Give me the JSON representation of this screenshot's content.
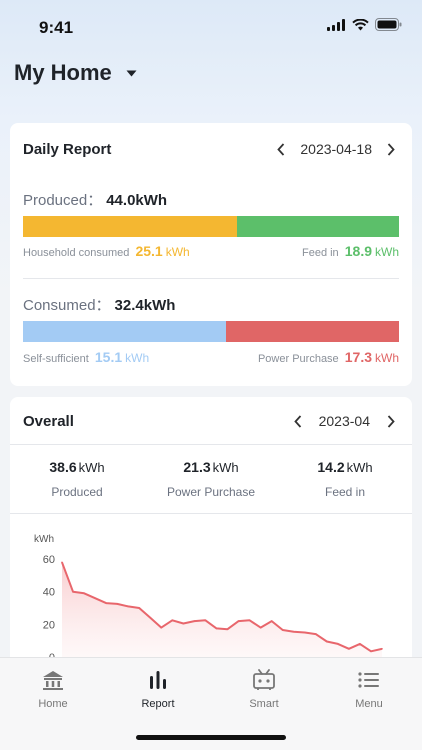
{
  "status_bar": {
    "time": "9:41"
  },
  "header": {
    "home_name": "My Home"
  },
  "daily_report": {
    "title": "Daily Report",
    "date": "2023-04-18",
    "produced": {
      "label": "Produced：",
      "value": "44.0kWh",
      "household_label": "Household consumed",
      "household_value": "25.1",
      "household_unit": "kWh",
      "household_share": 0.57,
      "feed_in_label": "Feed in",
      "feed_in_value": "18.9",
      "feed_in_unit": "kWh",
      "feed_in_share": 0.43
    },
    "consumed": {
      "label": "Consumed：",
      "value": "32.4kWh",
      "self_label": "Self-sufficient",
      "self_value": "15.1",
      "self_unit": "kWh",
      "self_share": 0.54,
      "purchase_label": "Power Purchase",
      "purchase_value": "17.3",
      "purchase_unit": "kWh",
      "purchase_share": 0.46
    },
    "colors": {
      "household": "#f4b731",
      "feed_in": "#5cbf6a",
      "self": "#a3cbf4",
      "purchase": "#e06666"
    }
  },
  "overall": {
    "title": "Overall",
    "date": "2023-04",
    "stats": [
      {
        "value": "38.6",
        "unit": "kWh",
        "label": "Produced"
      },
      {
        "value": "21.3",
        "unit": "kWh",
        "label": "Power Purchase"
      },
      {
        "value": "14.2",
        "unit": "kWh",
        "label": "Feed in"
      }
    ]
  },
  "chart_data": {
    "type": "area",
    "ylabel": "kWh",
    "y_ticks": [
      "60",
      "40",
      "20",
      "0"
    ],
    "ylim": [
      0,
      60
    ],
    "x": [
      1,
      2,
      3,
      4,
      5,
      6,
      7,
      8,
      9,
      10,
      11,
      12,
      13,
      14,
      15,
      16,
      17,
      18,
      19,
      20,
      21,
      22,
      23,
      24,
      25,
      26,
      27,
      28,
      29,
      30
    ],
    "values": [
      58,
      40,
      39,
      36,
      33,
      32.5,
      31,
      30,
      24,
      18,
      22.5,
      20.5,
      22,
      22.5,
      17.5,
      17,
      22,
      22.5,
      18,
      22,
      16.5,
      15.5,
      15,
      14,
      9.5,
      8,
      5,
      8,
      3.5,
      5
    ],
    "line_color": "#e8666c",
    "grid": false
  },
  "tabbar": {
    "tabs": [
      {
        "label": "Home",
        "icon": "house-icon"
      },
      {
        "label": "Report",
        "icon": "bar-chart-icon"
      },
      {
        "label": "Smart",
        "icon": "robot-icon"
      },
      {
        "label": "Menu",
        "icon": "menu-list-icon"
      }
    ],
    "active": "Report"
  }
}
